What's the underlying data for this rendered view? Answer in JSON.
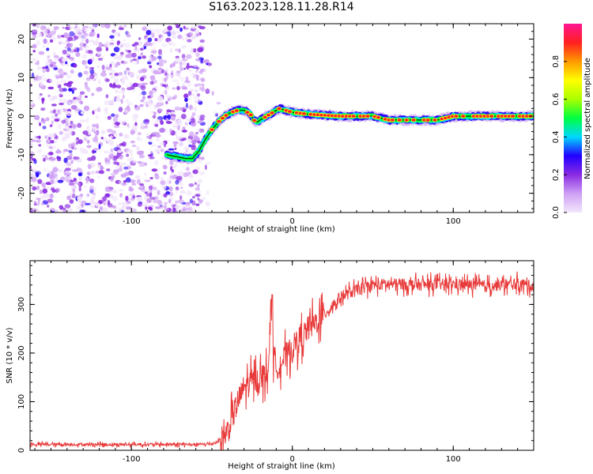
{
  "title": "S163.2023.128.11.28.R14",
  "chart_data": [
    {
      "type": "heatmap",
      "xlabel": "Height of straight line (km)",
      "ylabel": "Frequency (Hz)",
      "xlim": [
        -163,
        150
      ],
      "ylim": [
        -25,
        24
      ],
      "x_ticks": [
        -100,
        0,
        100
      ],
      "y_ticks": [
        -20,
        -10,
        0,
        10,
        20
      ],
      "colorbar": {
        "label": "Normalized spectral amplitude",
        "range": [
          0,
          1
        ],
        "ticks": [
          0.0,
          0.2,
          0.4,
          0.6,
          0.8
        ],
        "colors": [
          "#f2e6fb",
          "#cfa0f5",
          "#8a2be2",
          "#2200ff",
          "#00d8ff",
          "#00ff40",
          "#aaff00",
          "#ffff00",
          "#ff9900",
          "#ff2020",
          "#ff1493"
        ]
      },
      "ridge_line": {
        "x": [
          -78,
          -72,
          -66,
          -62,
          -58,
          -54,
          -50,
          -46,
          -42,
          -38,
          -34,
          -30,
          -26,
          -24,
          -22,
          -20,
          -16,
          -12,
          -8,
          -4,
          0,
          10,
          30,
          50,
          60,
          70,
          80,
          90,
          100,
          120,
          150
        ],
        "y": [
          -10,
          -10.5,
          -11,
          -11,
          -9,
          -6,
          -3.5,
          -1.5,
          0,
          1,
          1.5,
          1.5,
          0.5,
          -1,
          -1.5,
          -1,
          0,
          1,
          2,
          1.5,
          1,
          0.5,
          0,
          0,
          -1,
          -1,
          -1,
          -1,
          0,
          0,
          0
        ]
      },
      "noise_region": {
        "x_range": [
          -163,
          -55
        ],
        "y_range": [
          -25,
          24
        ],
        "amplitude": "low-moderate"
      }
    },
    {
      "type": "line",
      "xlabel": "Height of straight line (km)",
      "ylabel": "SNR (10 * v/v)",
      "xlim": [
        -163,
        150
      ],
      "ylim": [
        0,
        390
      ],
      "x_ticks": [
        -100,
        0,
        100
      ],
      "y_ticks": [
        0,
        100,
        200,
        300
      ],
      "series": [
        {
          "color": "#e83a3a",
          "x": [
            -163,
            -140,
            -120,
            -100,
            -80,
            -60,
            -50,
            -45,
            -40,
            -35,
            -30,
            -25,
            -20,
            -15,
            -13,
            -12,
            -10,
            -5,
            0,
            10,
            20,
            30,
            40,
            50,
            60,
            80,
            100,
            120,
            130,
            140,
            150
          ],
          "values": [
            12,
            12,
            12,
            12,
            12,
            12,
            13,
            20,
            40,
            90,
            130,
            140,
            150,
            160,
            320,
            180,
            170,
            190,
            210,
            250,
            280,
            315,
            330,
            340,
            342,
            340,
            342,
            338,
            340,
            342,
            338
          ]
        }
      ],
      "peak": {
        "x": -12.5,
        "y": 320
      }
    }
  ]
}
